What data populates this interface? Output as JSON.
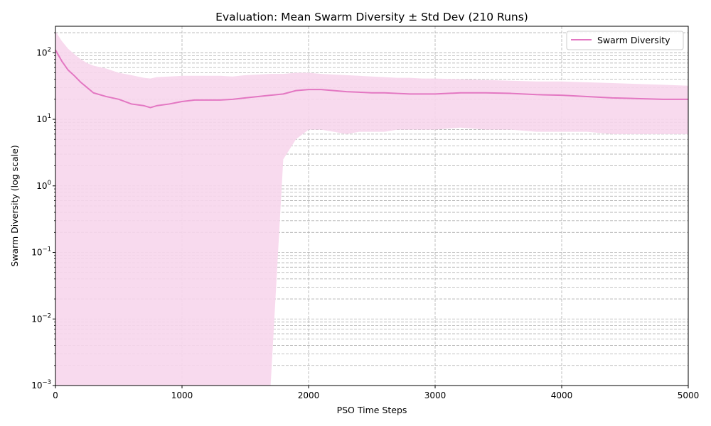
{
  "chart_data": {
    "type": "line",
    "title": "Evaluation: Mean Swarm Diversity ± Std Dev (210 Runs)",
    "xlabel": "PSO Time Steps",
    "ylabel": "Swarm Diversity (log scale)",
    "xlim": [
      0,
      5000
    ],
    "ylim": [
      0.001,
      250
    ],
    "yscale": "log",
    "grid": true,
    "legend_position": "top-right",
    "x_ticks": [
      0,
      1000,
      2000,
      3000,
      4000,
      5000
    ],
    "x_tick_labels": [
      "0",
      "1000",
      "2000",
      "3000",
      "4000",
      "5000"
    ],
    "y_ticks": [
      0.001,
      0.01,
      0.1,
      1,
      10,
      100
    ],
    "y_tick_labels": [
      {
        "base": "10",
        "exp": "−3"
      },
      {
        "base": "10",
        "exp": "−2"
      },
      {
        "base": "10",
        "exp": "−1"
      },
      {
        "base": "10",
        "exp": "0"
      },
      {
        "base": "10",
        "exp": "1"
      },
      {
        "base": "10",
        "exp": "2"
      }
    ],
    "series": [
      {
        "name": "Swarm Diversity",
        "color": "#e377c2",
        "band_color": "#f7d6ec",
        "x": [
          0,
          50,
          100,
          150,
          200,
          250,
          300,
          400,
          500,
          600,
          700,
          750,
          800,
          900,
          1000,
          1100,
          1200,
          1300,
          1400,
          1500,
          1600,
          1700,
          1800,
          1900,
          2000,
          2100,
          2200,
          2300,
          2400,
          2500,
          2600,
          2700,
          2800,
          2900,
          3000,
          3200,
          3400,
          3600,
          3800,
          4000,
          4200,
          4400,
          4600,
          4800,
          5000
        ],
        "mean": [
          110,
          75,
          55,
          45,
          36,
          30,
          25,
          22,
          20,
          17,
          16,
          15,
          16,
          17,
          18.5,
          19.5,
          19.5,
          19.5,
          20,
          21,
          22,
          23,
          24,
          27,
          28,
          28,
          27,
          26,
          25.5,
          25,
          25,
          24.5,
          24,
          24,
          24,
          25,
          25,
          24.5,
          23.5,
          23,
          22,
          21,
          20.5,
          20,
          20
        ],
        "upper": [
          210,
          150,
          115,
          95,
          80,
          70,
          64,
          58,
          50,
          46,
          42,
          41,
          43,
          44,
          45,
          45,
          45,
          45,
          44,
          46,
          47,
          48,
          48,
          50,
          50,
          48,
          47,
          46,
          45,
          44,
          43,
          42,
          42,
          41,
          41,
          40,
          39,
          38,
          37,
          37,
          36,
          35,
          34,
          33,
          32
        ],
        "lower": [
          0.001,
          0.001,
          0.001,
          0.001,
          0.001,
          0.001,
          0.001,
          0.001,
          0.001,
          0.001,
          0.001,
          0.001,
          0.001,
          0.001,
          0.001,
          0.001,
          0.001,
          0.001,
          0.001,
          0.001,
          0.001,
          0.001,
          2.5,
          5,
          7,
          7,
          6.5,
          6,
          6.5,
          6.5,
          6.5,
          7,
          7,
          7,
          7,
          7.5,
          7,
          7,
          6.5,
          6.5,
          6.5,
          6,
          6,
          6,
          6
        ]
      }
    ]
  }
}
